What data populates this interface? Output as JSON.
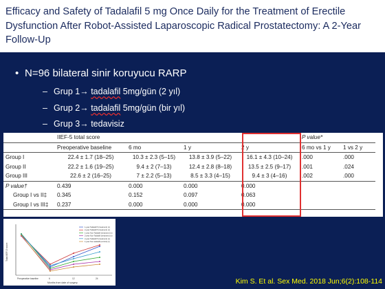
{
  "title": "Efficacy and Safety of Tadalafil 5 mg Once Daily for the Treatment of Erectile Dysfunction After Robot-Assisted Laparoscopic Radical Prostatectomy: A 2-Year Follow-Up",
  "bullet_main": "N=96 bilateral sinir koruyucu RARP",
  "groups": [
    {
      "dash": "–",
      "prefix": "Grup 1",
      "arrow": "→",
      "drug": "tadalafil",
      "rest": " 5mg/gün (2 yıl)"
    },
    {
      "dash": "–",
      "prefix": "Grup 2",
      "arrow": "→",
      "drug": "tadalafil",
      "rest": " 5mg/gün (bir yıl)"
    },
    {
      "dash": "–",
      "prefix": "Grup 3",
      "arrow": "→",
      "drug": "",
      "rest": " tedavisiz"
    }
  ],
  "table": {
    "group_header": "IIEF-5 total score",
    "pvalue_header": "P value*",
    "columns": [
      "",
      "Preoperative baseline",
      "6 mo",
      "1 y",
      "2 y",
      "6 mo vs 1 y",
      "1 vs 2 y"
    ],
    "rows": [
      [
        "Group I",
        "22.4 ± 1.7 (18–25)",
        "10.3 ± 2.3 (5–15)",
        "13.8 ± 3.9 (5–22)",
        "16.1 ± 4.3 (10–24)",
        ".000",
        ".000"
      ],
      [
        "Group II",
        "22.2 ± 1.6 (19–25)",
        "9.4 ± 2 (7–13)",
        "12.4 ± 2.8 (8–18)",
        "13.5 ± 2.5 (9–17)",
        ".001",
        ".024"
      ],
      [
        "Group III",
        "22.6 ± 2 (16–25)",
        "7 ± 2.2 (5–13)",
        "8.5 ± 3.3 (4–15)",
        "9.4 ± 3 (4–16)",
        ".002",
        ".000"
      ],
      [
        "P value†",
        "0.439",
        "0.000",
        "0.000",
        "0.000",
        "",
        ""
      ],
      [
        "Group I vs II‡",
        "0.345",
        "0.152",
        "0.097",
        "0.063",
        "",
        ""
      ],
      [
        "Group I vs III‡",
        "0.237",
        "0.000",
        "0.000",
        "0.000",
        "",
        ""
      ]
    ]
  },
  "graph": {
    "xlabel": "Months from date of surgery",
    "ylabel": "Total IIEF-5 score",
    "x_ticks": [
      "Preoperative baseline",
      "6",
      "12",
      "24"
    ],
    "legend": [
      "1-year Tadalafil 5 (treatment) (n)",
      "2-year Tadalafil 5 (treatment) (n)",
      "1-year Non-Tadalafil (treatment) (n)",
      "2-year Non-Tadalafil (treatment) (n)",
      "2-year Tadalafil 5 (treatment) (n)",
      "1-year Non-tadalafil (control) (n)"
    ],
    "series_colors": [
      "#3355cc",
      "#cc3333",
      "#33aa33",
      "#aa33aa",
      "#3399cc",
      "#cc8833"
    ]
  },
  "citation": "Kim S. Et al. Sex Med. 2018 Jun;6(2):108-114"
}
